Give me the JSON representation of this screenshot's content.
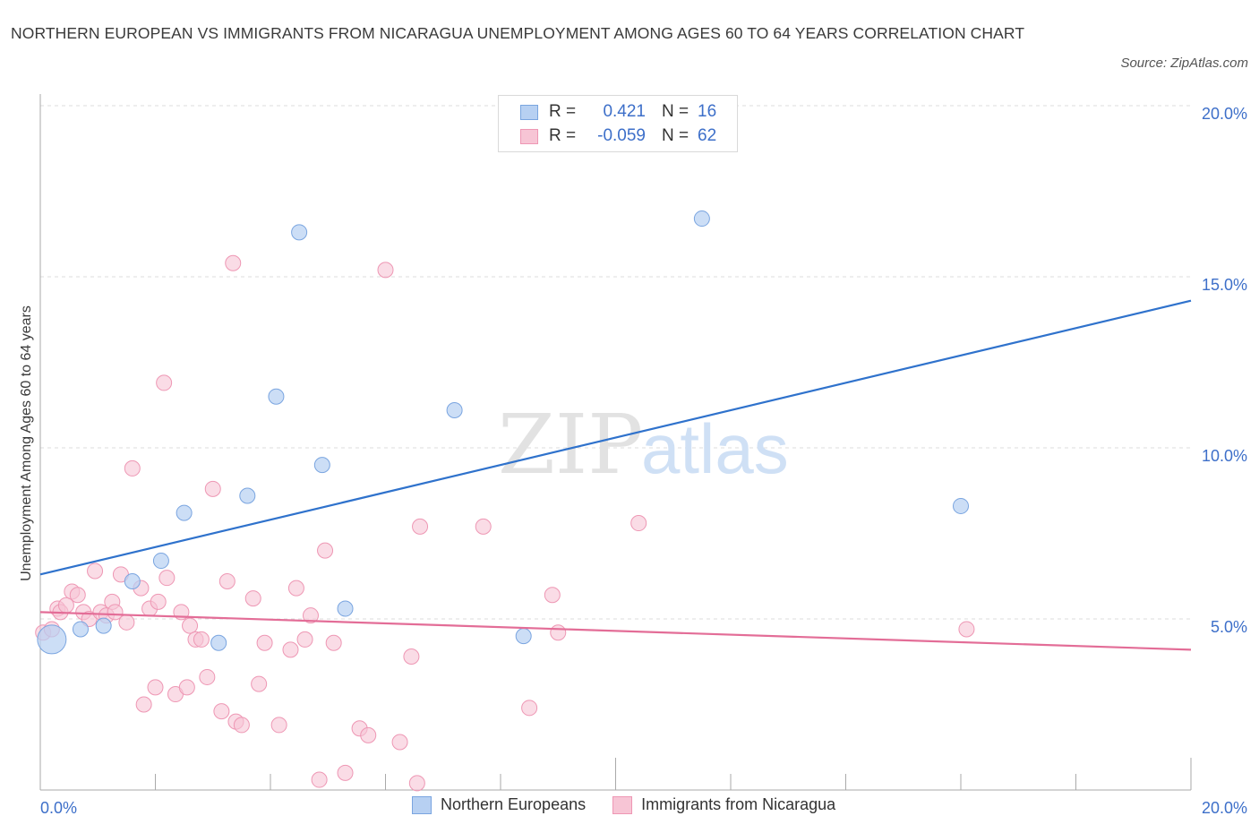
{
  "title": "NORTHERN EUROPEAN VS IMMIGRANTS FROM NICARAGUA UNEMPLOYMENT AMONG AGES 60 TO 64 YEARS CORRELATION CHART",
  "source": "Source: ZipAtlas.com",
  "watermark": {
    "zip": "ZIP",
    "atlas": "atlas"
  },
  "legend": {
    "rows": [
      {
        "r_label": "R =",
        "r_value": "0.421",
        "n_label": "N =",
        "n_value": "16"
      },
      {
        "r_label": "R =",
        "r_value": "-0.059",
        "n_label": "N =",
        "n_value": "62"
      }
    ]
  },
  "bottom_legend": [
    "Northern Europeans",
    "Immigrants from Nicaragua"
  ],
  "colors": {
    "blue_fill": "#b7d0f2",
    "blue_stroke": "#7aa5e0",
    "blue_line": "#2f72cc",
    "pink_fill": "#f7c5d5",
    "pink_stroke": "#ee97b4",
    "pink_line": "#e36d97",
    "axis_text": "#3d6fc9",
    "grid": "#dddddd"
  },
  "chart_data": {
    "type": "scatter",
    "title": "NORTHERN EUROPEAN VS IMMIGRANTS FROM NICARAGUA UNEMPLOYMENT AMONG AGES 60 TO 64 YEARS CORRELATION CHART",
    "xlabel": "",
    "ylabel": "Unemployment Among Ages 60 to 64 years",
    "xlim": [
      0,
      20
    ],
    "ylim": [
      0,
      20
    ],
    "x_tick_labels": [
      "0.0%",
      "20.0%"
    ],
    "y_tick_labels": [
      "5.0%",
      "10.0%",
      "15.0%",
      "20.0%"
    ],
    "y_ticks": [
      5,
      10,
      15,
      20
    ],
    "grid": true,
    "series": [
      {
        "name": "Northern Europeans",
        "color": "#b7d0f2",
        "trend": {
          "x": [
            0,
            20
          ],
          "y": [
            6.3,
            14.3
          ]
        },
        "points": [
          {
            "x": 0.2,
            "y": 4.4,
            "big": true
          },
          {
            "x": 0.7,
            "y": 4.7
          },
          {
            "x": 1.1,
            "y": 4.8
          },
          {
            "x": 1.6,
            "y": 6.1
          },
          {
            "x": 2.1,
            "y": 6.7
          },
          {
            "x": 2.5,
            "y": 8.1
          },
          {
            "x": 3.1,
            "y": 4.3
          },
          {
            "x": 3.6,
            "y": 8.6
          },
          {
            "x": 4.1,
            "y": 11.5
          },
          {
            "x": 4.5,
            "y": 16.3
          },
          {
            "x": 4.9,
            "y": 9.5
          },
          {
            "x": 5.3,
            "y": 5.3
          },
          {
            "x": 7.2,
            "y": 11.1
          },
          {
            "x": 8.4,
            "y": 4.5
          },
          {
            "x": 11.5,
            "y": 16.7
          },
          {
            "x": 16.0,
            "y": 8.3
          }
        ]
      },
      {
        "name": "Immigrants from Nicaragua",
        "color": "#f7c5d5",
        "trend": {
          "x": [
            0,
            20
          ],
          "y": [
            5.2,
            4.1
          ]
        },
        "points": [
          {
            "x": 0.05,
            "y": 4.6
          },
          {
            "x": 0.2,
            "y": 4.7
          },
          {
            "x": 0.3,
            "y": 5.3
          },
          {
            "x": 0.35,
            "y": 5.2
          },
          {
            "x": 0.45,
            "y": 5.4
          },
          {
            "x": 0.55,
            "y": 5.8
          },
          {
            "x": 0.65,
            "y": 5.7
          },
          {
            "x": 0.75,
            "y": 5.2
          },
          {
            "x": 0.85,
            "y": 5.0
          },
          {
            "x": 0.95,
            "y": 6.4
          },
          {
            "x": 1.05,
            "y": 5.2
          },
          {
            "x": 1.15,
            "y": 5.1
          },
          {
            "x": 1.25,
            "y": 5.5
          },
          {
            "x": 1.3,
            "y": 5.2
          },
          {
            "x": 1.4,
            "y": 6.3
          },
          {
            "x": 1.5,
            "y": 4.9
          },
          {
            "x": 1.6,
            "y": 9.4
          },
          {
            "x": 1.75,
            "y": 5.9
          },
          {
            "x": 1.8,
            "y": 2.5
          },
          {
            "x": 1.9,
            "y": 5.3
          },
          {
            "x": 2.0,
            "y": 3.0
          },
          {
            "x": 2.05,
            "y": 5.5
          },
          {
            "x": 2.15,
            "y": 11.9
          },
          {
            "x": 2.2,
            "y": 6.2
          },
          {
            "x": 2.35,
            "y": 2.8
          },
          {
            "x": 2.45,
            "y": 5.2
          },
          {
            "x": 2.55,
            "y": 3.0
          },
          {
            "x": 2.6,
            "y": 4.8
          },
          {
            "x": 2.7,
            "y": 4.4
          },
          {
            "x": 2.8,
            "y": 4.4
          },
          {
            "x": 2.9,
            "y": 3.3
          },
          {
            "x": 3.0,
            "y": 8.8
          },
          {
            "x": 3.15,
            "y": 2.3
          },
          {
            "x": 3.25,
            "y": 6.1
          },
          {
            "x": 3.35,
            "y": 15.4
          },
          {
            "x": 3.4,
            "y": 2.0
          },
          {
            "x": 3.5,
            "y": 1.9
          },
          {
            "x": 3.7,
            "y": 5.6
          },
          {
            "x": 3.8,
            "y": 3.1
          },
          {
            "x": 3.9,
            "y": 4.3
          },
          {
            "x": 4.15,
            "y": 1.9
          },
          {
            "x": 4.35,
            "y": 4.1
          },
          {
            "x": 4.45,
            "y": 5.9
          },
          {
            "x": 4.6,
            "y": 4.4
          },
          {
            "x": 4.7,
            "y": 5.1
          },
          {
            "x": 4.85,
            "y": 0.3
          },
          {
            "x": 4.95,
            "y": 7.0
          },
          {
            "x": 5.1,
            "y": 4.3
          },
          {
            "x": 5.3,
            "y": 0.5
          },
          {
            "x": 5.55,
            "y": 1.8
          },
          {
            "x": 5.7,
            "y": 1.6
          },
          {
            "x": 6.0,
            "y": 15.2
          },
          {
            "x": 6.25,
            "y": 1.4
          },
          {
            "x": 6.45,
            "y": 3.9
          },
          {
            "x": 6.55,
            "y": 0.2
          },
          {
            "x": 6.6,
            "y": 7.7
          },
          {
            "x": 7.7,
            "y": 7.7
          },
          {
            "x": 8.5,
            "y": 2.4
          },
          {
            "x": 8.9,
            "y": 5.7
          },
          {
            "x": 9.0,
            "y": 4.6
          },
          {
            "x": 10.4,
            "y": 7.8
          },
          {
            "x": 16.1,
            "y": 4.7
          }
        ]
      }
    ]
  }
}
